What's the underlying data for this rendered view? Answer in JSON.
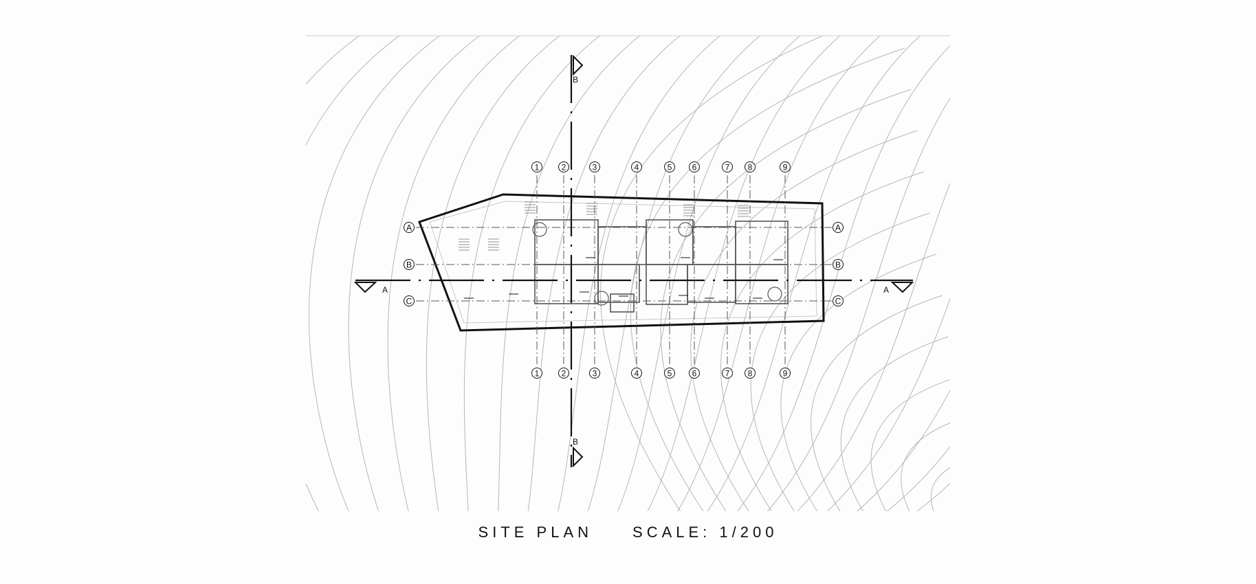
{
  "drawing": {
    "title": "SITE PLAN",
    "scale_text": "SCALE: 1/200",
    "section_markers": [
      "A",
      "A",
      "B",
      "B"
    ],
    "column_grid_labels": [
      "1",
      "2",
      "3",
      "4",
      "5",
      "6",
      "7",
      "8",
      "9"
    ],
    "row_grid_labels": [
      "A",
      "B",
      "C"
    ],
    "colors": {
      "ink": "#111111",
      "contour": "#b5b5b5",
      "background": "#fdfdfd"
    }
  }
}
